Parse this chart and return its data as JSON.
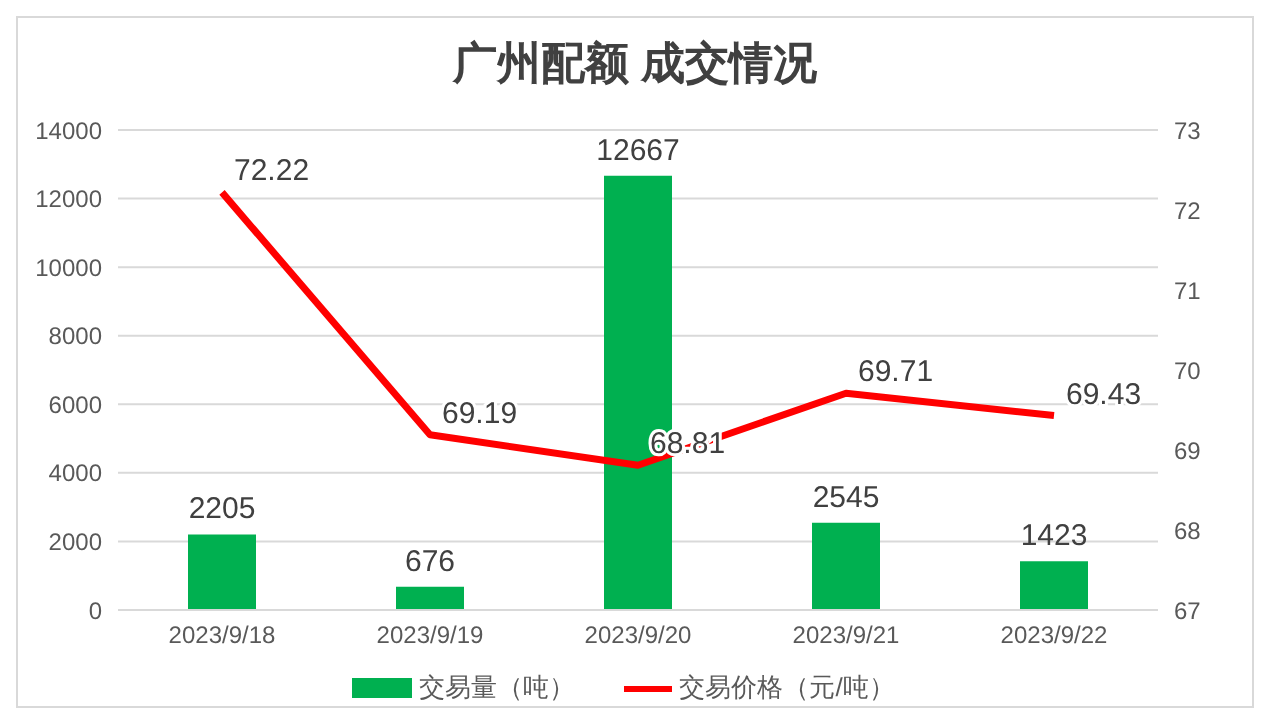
{
  "chart_data": {
    "type": "bar",
    "title": "广州配额 成交情况",
    "categories": [
      "2023/9/18",
      "2023/9/19",
      "2023/9/20",
      "2023/9/21",
      "2023/9/22"
    ],
    "series": [
      {
        "name": "交易量（吨）",
        "color": "#00b050",
        "values": [
          2205,
          676,
          12667,
          2545,
          1423
        ]
      },
      {
        "name": "交易价格（元/吨）",
        "type": "line",
        "axis": "y2",
        "color": "#ff0000",
        "values": [
          72.22,
          69.19,
          68.81,
          69.71,
          69.43
        ]
      }
    ],
    "ylim": [
      0,
      14000
    ],
    "yticks": [
      0,
      2000,
      4000,
      6000,
      8000,
      10000,
      12000,
      14000
    ],
    "y2lim": [
      67,
      73
    ],
    "y2ticks": [
      67,
      68,
      69,
      70,
      71,
      72,
      73
    ],
    "grid": "y",
    "legend": "bottom",
    "data_labels": true,
    "marker": "none",
    "line_style": "solid"
  }
}
